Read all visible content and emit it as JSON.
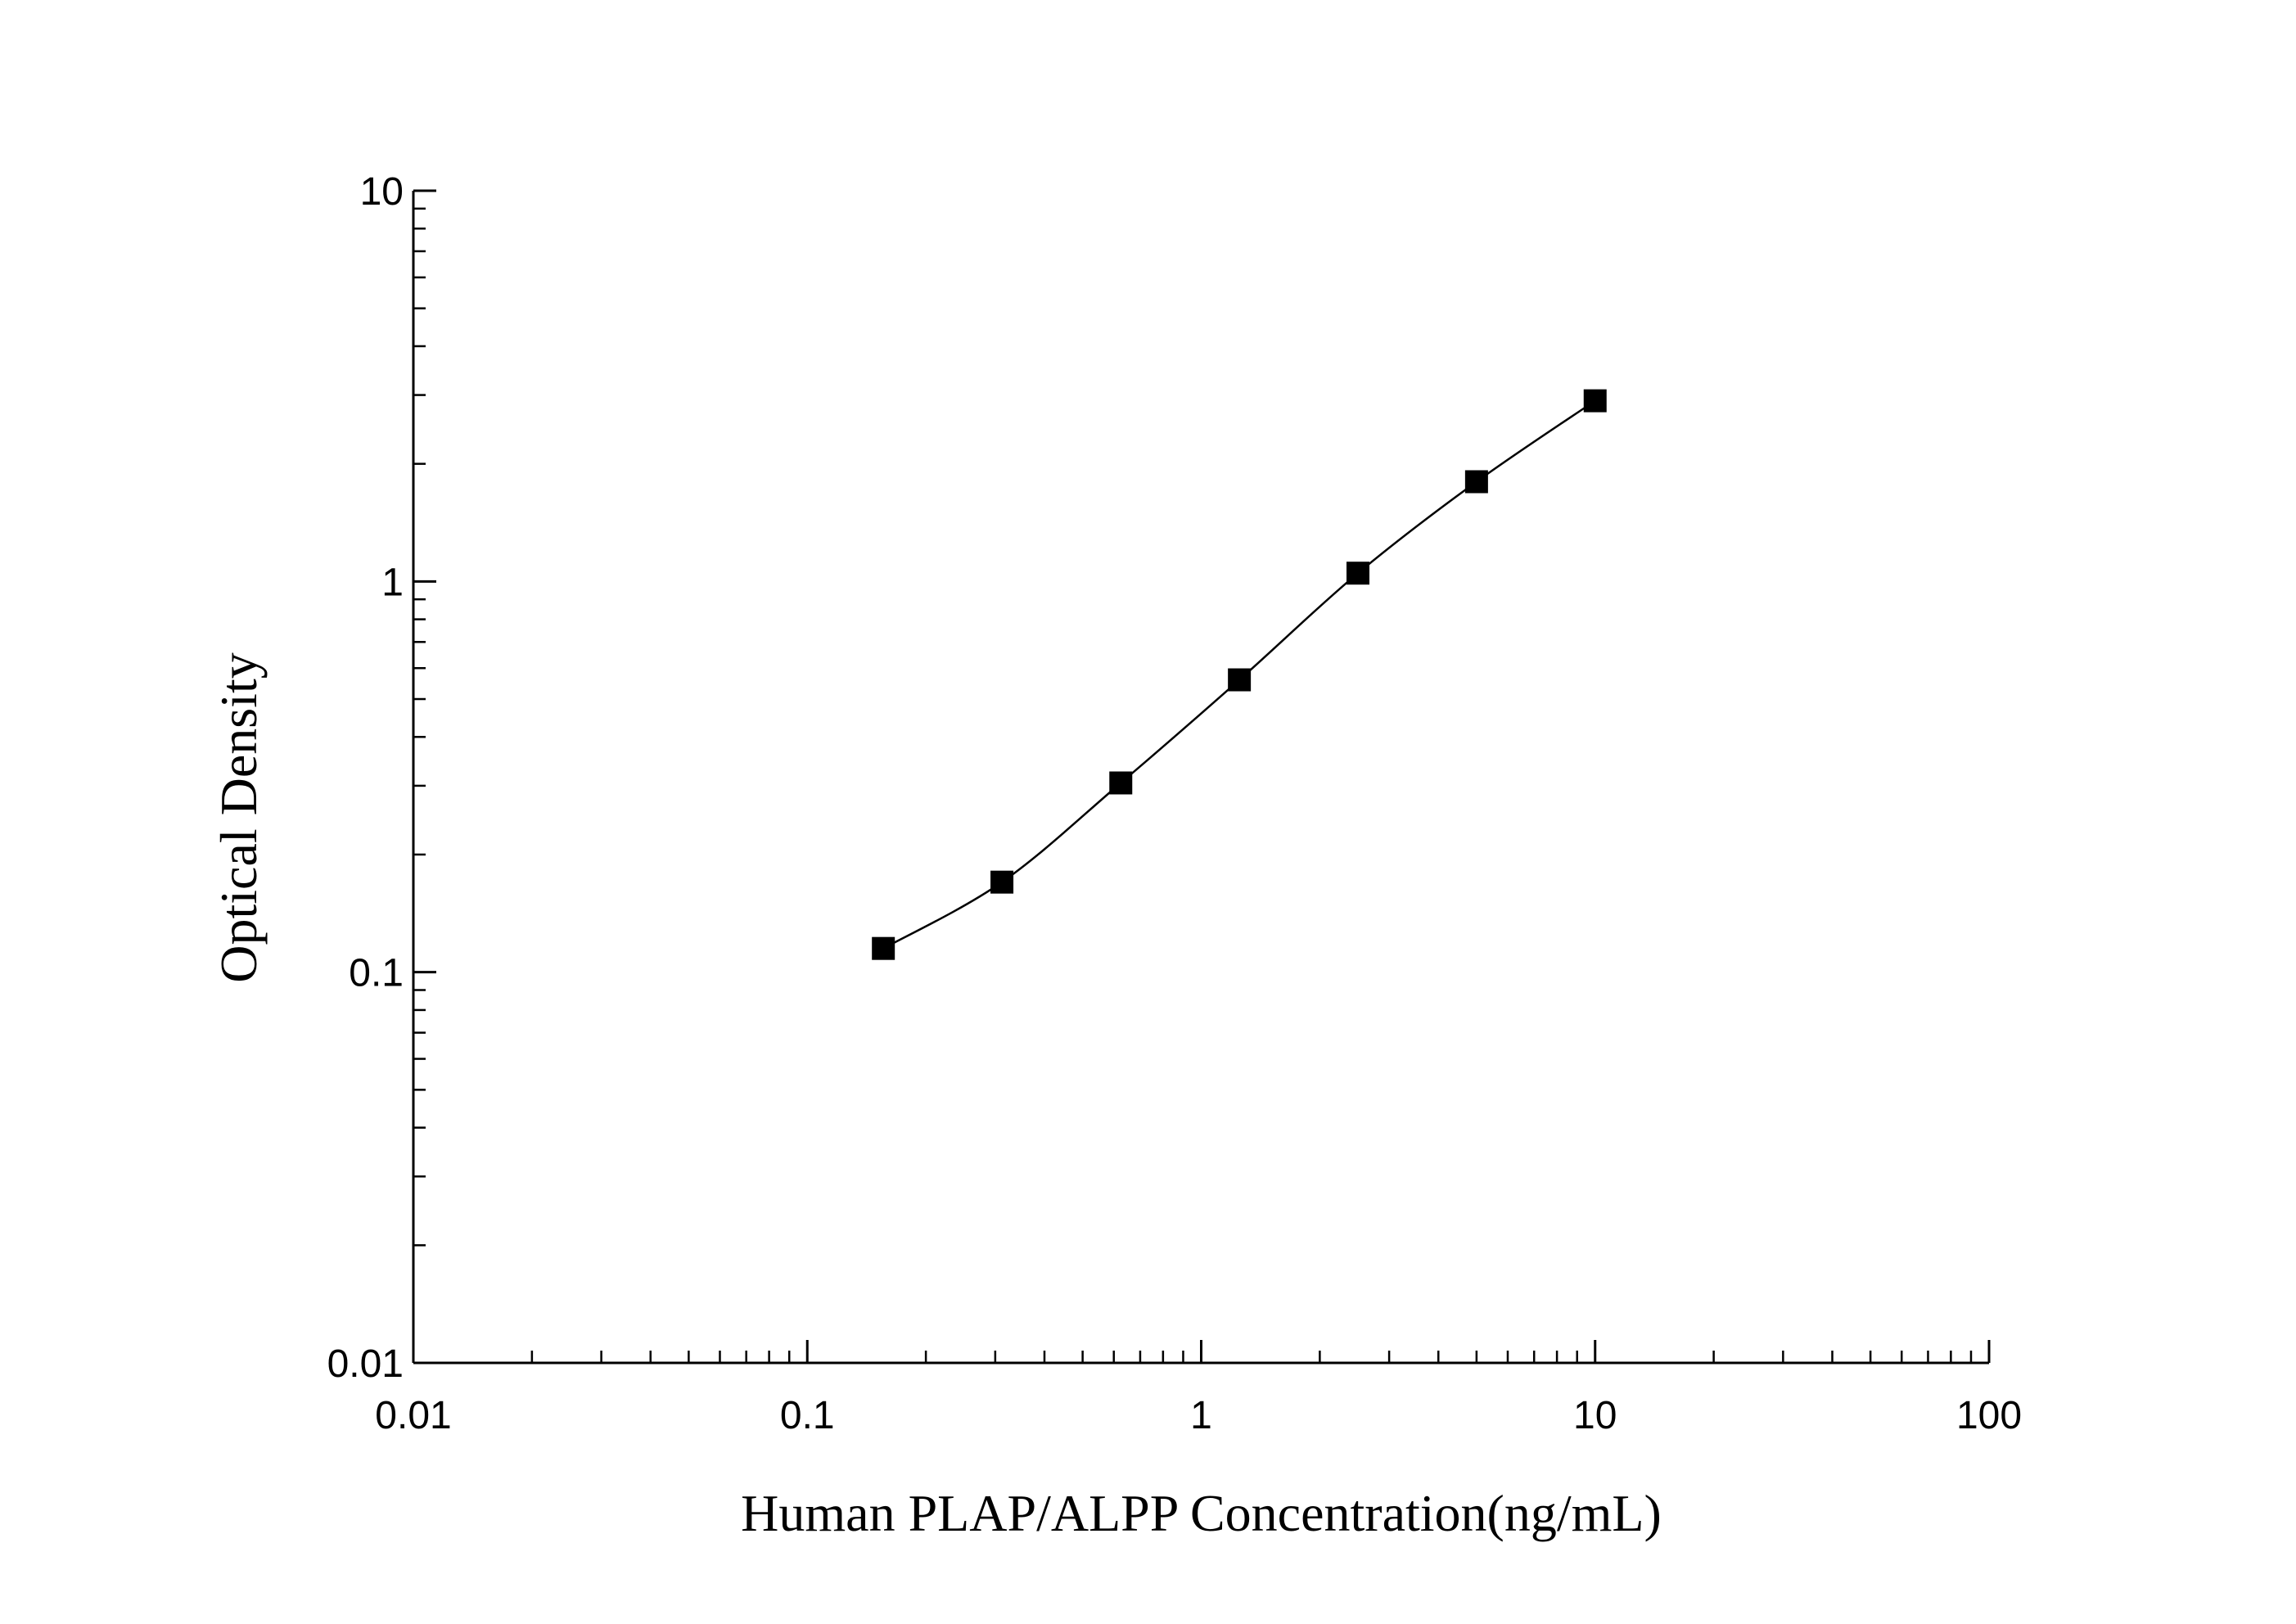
{
  "chart_data": {
    "type": "scatter",
    "xlabel": "Human PLAP/ALPP Concentration(ng/mL)",
    "ylabel": "Optical Density",
    "xscale": "log",
    "yscale": "log",
    "xlim": [
      0.01,
      100
    ],
    "ylim": [
      0.01,
      10
    ],
    "grid": false,
    "legend": "none",
    "x_ticks": [
      {
        "value": 0.01,
        "label": "0.01"
      },
      {
        "value": 0.1,
        "label": "0.1"
      },
      {
        "value": 1,
        "label": "1"
      },
      {
        "value": 10,
        "label": "10"
      },
      {
        "value": 100,
        "label": "100"
      }
    ],
    "y_ticks": [
      {
        "value": 0.01,
        "label": "0.01"
      },
      {
        "value": 0.1,
        "label": "0.1"
      },
      {
        "value": 1,
        "label": "1"
      },
      {
        "value": 10,
        "label": "10"
      }
    ],
    "series": [
      {
        "x": [
          0.156,
          0.312,
          0.625,
          1.25,
          2.5,
          5,
          10
        ],
        "y": [
          0.115,
          0.17,
          0.305,
          0.56,
          1.05,
          1.8,
          2.9
        ],
        "marker": "square",
        "fit_line": true,
        "color": "#000000"
      }
    ]
  }
}
